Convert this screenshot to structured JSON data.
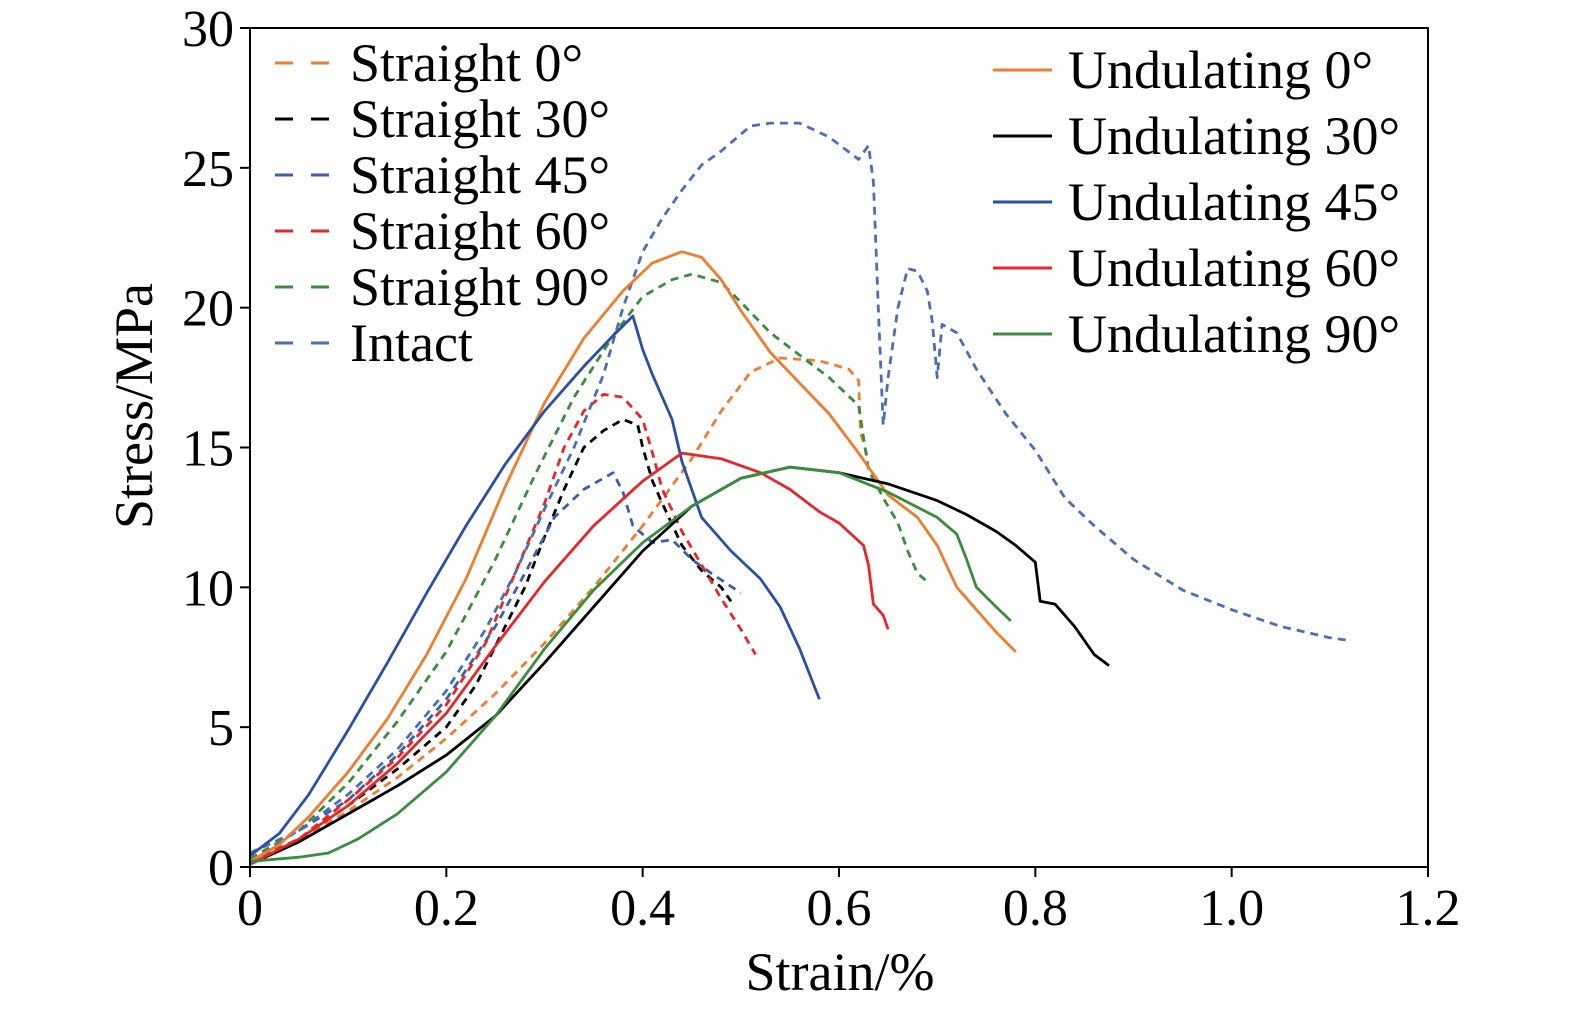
{
  "chart_data": {
    "type": "line",
    "xlabel": "Strain/%",
    "ylabel": "Stress/MPa",
    "xlim": [
      0,
      1.2
    ],
    "ylim": [
      0,
      30
    ],
    "x_ticks": [
      "0",
      "0.2",
      "0.4",
      "0.6",
      "0.8",
      "1.0",
      "1.2"
    ],
    "y_ticks": [
      "0",
      "5",
      "10",
      "15",
      "20",
      "25",
      "30"
    ],
    "grid": false,
    "series": [
      {
        "name": "Straight 0°",
        "style": "dashed",
        "color": "#ED7D31",
        "legend": "top-left",
        "points": [
          [
            0,
            0.2
          ],
          [
            0.05,
            1
          ],
          [
            0.1,
            2
          ],
          [
            0.15,
            3.2
          ],
          [
            0.2,
            4.6
          ],
          [
            0.25,
            6.2
          ],
          [
            0.3,
            8
          ],
          [
            0.35,
            10
          ],
          [
            0.4,
            12.2
          ],
          [
            0.45,
            14.6
          ],
          [
            0.48,
            16.3
          ],
          [
            0.51,
            17.7
          ],
          [
            0.54,
            18.2
          ],
          [
            0.58,
            18.1
          ],
          [
            0.61,
            17.8
          ],
          [
            0.62,
            17.4
          ],
          [
            0.622,
            15.5
          ],
          [
            0.625,
            15.2
          ],
          [
            0.63,
            14.5
          ]
        ]
      },
      {
        "name": "Straight 30°",
        "style": "dashed",
        "color": "#000000",
        "legend": "top-left",
        "points": [
          [
            0,
            0.2
          ],
          [
            0.05,
            1
          ],
          [
            0.1,
            2.2
          ],
          [
            0.15,
            3.5
          ],
          [
            0.2,
            5
          ],
          [
            0.23,
            6.5
          ],
          [
            0.26,
            8.6
          ],
          [
            0.28,
            10
          ],
          [
            0.3,
            11.8
          ],
          [
            0.32,
            13.5
          ],
          [
            0.34,
            15
          ],
          [
            0.36,
            15.6
          ],
          [
            0.38,
            16
          ],
          [
            0.395,
            15.8
          ],
          [
            0.4,
            15
          ],
          [
            0.41,
            13.8
          ],
          [
            0.42,
            13
          ],
          [
            0.44,
            11.5
          ],
          [
            0.46,
            10.6
          ],
          [
            0.48,
            10
          ],
          [
            0.49,
            9.5
          ]
        ]
      },
      {
        "name": "Straight 45°",
        "style": "dashed",
        "color": "#3D5EAD",
        "legend": "top-left",
        "points": [
          [
            0,
            0.5
          ],
          [
            0.05,
            1.3
          ],
          [
            0.1,
            2.4
          ],
          [
            0.15,
            4
          ],
          [
            0.2,
            6
          ],
          [
            0.25,
            8.6
          ],
          [
            0.28,
            10.5
          ],
          [
            0.31,
            12.5
          ],
          [
            0.34,
            13.5
          ],
          [
            0.37,
            14.1
          ],
          [
            0.38,
            13.4
          ],
          [
            0.39,
            12.2
          ],
          [
            0.41,
            11.6
          ],
          [
            0.43,
            11.7
          ],
          [
            0.45,
            11
          ],
          [
            0.47,
            10.5
          ],
          [
            0.5,
            9.8
          ]
        ]
      },
      {
        "name": "Straight 60°",
        "style": "dashed",
        "color": "#E5262B",
        "legend": "top-left",
        "points": [
          [
            0,
            0.2
          ],
          [
            0.05,
            1
          ],
          [
            0.1,
            2.4
          ],
          [
            0.15,
            3.9
          ],
          [
            0.2,
            5.8
          ],
          [
            0.24,
            8
          ],
          [
            0.27,
            10.5
          ],
          [
            0.3,
            13
          ],
          [
            0.32,
            15
          ],
          [
            0.34,
            16.3
          ],
          [
            0.36,
            16.9
          ],
          [
            0.38,
            16.8
          ],
          [
            0.4,
            16
          ],
          [
            0.41,
            14.8
          ],
          [
            0.42,
            13.5
          ],
          [
            0.44,
            12
          ],
          [
            0.46,
            10.8
          ],
          [
            0.48,
            9.6
          ],
          [
            0.5,
            8.5
          ],
          [
            0.515,
            7.6
          ]
        ]
      },
      {
        "name": "Straight 90°",
        "style": "dashed",
        "color": "#3A8C3F",
        "legend": "top-left",
        "points": [
          [
            0,
            0.3
          ],
          [
            0.05,
            1.3
          ],
          [
            0.1,
            3
          ],
          [
            0.15,
            5.2
          ],
          [
            0.2,
            7.7
          ],
          [
            0.25,
            11
          ],
          [
            0.29,
            14
          ],
          [
            0.33,
            16.8
          ],
          [
            0.37,
            19
          ],
          [
            0.4,
            20.4
          ],
          [
            0.43,
            21
          ],
          [
            0.45,
            21.2
          ],
          [
            0.48,
            20.9
          ],
          [
            0.5,
            20.2
          ],
          [
            0.53,
            19.1
          ],
          [
            0.56,
            18.3
          ],
          [
            0.59,
            17.5
          ],
          [
            0.62,
            16.5
          ],
          [
            0.63,
            14.2
          ],
          [
            0.645,
            13.2
          ],
          [
            0.66,
            12.3
          ],
          [
            0.67,
            11.3
          ],
          [
            0.68,
            10.5
          ],
          [
            0.69,
            10.2
          ]
        ]
      },
      {
        "name": "Intact",
        "style": "dashed",
        "color": "#4A6FB3",
        "legend": "top-left",
        "points": [
          [
            0,
            0.5
          ],
          [
            0.05,
            1.3
          ],
          [
            0.1,
            2.6
          ],
          [
            0.15,
            4.2
          ],
          [
            0.2,
            6.3
          ],
          [
            0.24,
            8.5
          ],
          [
            0.27,
            10.5
          ],
          [
            0.3,
            12.8
          ],
          [
            0.33,
            15
          ],
          [
            0.36,
            17.6
          ],
          [
            0.38,
            20
          ],
          [
            0.4,
            22
          ],
          [
            0.42,
            23.2
          ],
          [
            0.44,
            24.2
          ],
          [
            0.46,
            25.1
          ],
          [
            0.48,
            25.6
          ],
          [
            0.51,
            26.5
          ],
          [
            0.53,
            26.6
          ],
          [
            0.56,
            26.6
          ],
          [
            0.59,
            26.1
          ],
          [
            0.62,
            25.3
          ],
          [
            0.63,
            25.8
          ],
          [
            0.635,
            24.5
          ],
          [
            0.64,
            20
          ],
          [
            0.645,
            15.8
          ],
          [
            0.65,
            17.5
          ],
          [
            0.66,
            20
          ],
          [
            0.67,
            21.4
          ],
          [
            0.68,
            21.3
          ],
          [
            0.69,
            20.6
          ],
          [
            0.695,
            19.5
          ],
          [
            0.7,
            17.5
          ],
          [
            0.705,
            19.4
          ],
          [
            0.72,
            19.1
          ],
          [
            0.74,
            17.8
          ],
          [
            0.77,
            16.2
          ],
          [
            0.8,
            14.9
          ],
          [
            0.83,
            13.2
          ],
          [
            0.86,
            12.2
          ],
          [
            0.9,
            11
          ],
          [
            0.95,
            9.9
          ],
          [
            1,
            9.2
          ],
          [
            1.05,
            8.6
          ],
          [
            1.1,
            8.2
          ],
          [
            1.12,
            8.1
          ]
        ]
      },
      {
        "name": "Undulating 0°",
        "style": "solid",
        "color": "#ED7D31",
        "legend": "top-right",
        "points": [
          [
            0,
            0.2
          ],
          [
            0.03,
            0.8
          ],
          [
            0.06,
            1.8
          ],
          [
            0.1,
            3.4
          ],
          [
            0.14,
            5.3
          ],
          [
            0.18,
            7.6
          ],
          [
            0.22,
            10.3
          ],
          [
            0.26,
            13.6
          ],
          [
            0.3,
            16.6
          ],
          [
            0.34,
            18.9
          ],
          [
            0.38,
            20.6
          ],
          [
            0.41,
            21.6
          ],
          [
            0.44,
            22
          ],
          [
            0.46,
            21.8
          ],
          [
            0.48,
            21
          ],
          [
            0.5,
            19.9
          ],
          [
            0.53,
            18.4
          ],
          [
            0.56,
            17.3
          ],
          [
            0.59,
            16.2
          ],
          [
            0.62,
            14.8
          ],
          [
            0.65,
            13.3
          ],
          [
            0.68,
            12.5
          ],
          [
            0.7,
            11.5
          ],
          [
            0.72,
            10
          ],
          [
            0.74,
            9.2
          ],
          [
            0.76,
            8.4
          ],
          [
            0.78,
            7.7
          ]
        ]
      },
      {
        "name": "Undulating 30°",
        "style": "solid",
        "color": "#000000",
        "legend": "top-right",
        "points": [
          [
            0,
            0.1
          ],
          [
            0.05,
            0.9
          ],
          [
            0.1,
            1.9
          ],
          [
            0.15,
            2.9
          ],
          [
            0.2,
            4
          ],
          [
            0.25,
            5.4
          ],
          [
            0.3,
            7.3
          ],
          [
            0.35,
            9.3
          ],
          [
            0.4,
            11.3
          ],
          [
            0.45,
            12.9
          ],
          [
            0.5,
            13.9
          ],
          [
            0.55,
            14.3
          ],
          [
            0.6,
            14.1
          ],
          [
            0.65,
            13.7
          ],
          [
            0.7,
            13.1
          ],
          [
            0.73,
            12.6
          ],
          [
            0.76,
            12
          ],
          [
            0.78,
            11.5
          ],
          [
            0.8,
            10.9
          ],
          [
            0.805,
            9.5
          ],
          [
            0.82,
            9.4
          ],
          [
            0.84,
            8.6
          ],
          [
            0.86,
            7.6
          ],
          [
            0.875,
            7.2
          ]
        ]
      },
      {
        "name": "Undulating 45°",
        "style": "solid",
        "color": "#2B4FA3",
        "legend": "top-right",
        "points": [
          [
            0,
            0.4
          ],
          [
            0.03,
            1.2
          ],
          [
            0.06,
            2.6
          ],
          [
            0.1,
            4.9
          ],
          [
            0.14,
            7.3
          ],
          [
            0.18,
            9.8
          ],
          [
            0.22,
            12.2
          ],
          [
            0.26,
            14.4
          ],
          [
            0.3,
            16.3
          ],
          [
            0.34,
            17.9
          ],
          [
            0.37,
            19
          ],
          [
            0.39,
            19.7
          ],
          [
            0.4,
            18.5
          ],
          [
            0.41,
            17.6
          ],
          [
            0.43,
            16
          ],
          [
            0.44,
            14.5
          ],
          [
            0.46,
            12.5
          ],
          [
            0.49,
            11.3
          ],
          [
            0.52,
            10.3
          ],
          [
            0.54,
            9.3
          ],
          [
            0.56,
            7.8
          ],
          [
            0.58,
            6
          ]
        ]
      },
      {
        "name": "Undulating 60°",
        "style": "solid",
        "color": "#E5262B",
        "legend": "top-right",
        "points": [
          [
            0,
            0.1
          ],
          [
            0.05,
            1
          ],
          [
            0.1,
            2.2
          ],
          [
            0.15,
            3.7
          ],
          [
            0.2,
            5.5
          ],
          [
            0.25,
            7.9
          ],
          [
            0.3,
            10.2
          ],
          [
            0.35,
            12.2
          ],
          [
            0.4,
            13.8
          ],
          [
            0.44,
            14.8
          ],
          [
            0.48,
            14.6
          ],
          [
            0.52,
            14.1
          ],
          [
            0.55,
            13.5
          ],
          [
            0.58,
            12.7
          ],
          [
            0.6,
            12.3
          ],
          [
            0.625,
            11.5
          ],
          [
            0.63,
            10.8
          ],
          [
            0.635,
            9.4
          ],
          [
            0.645,
            9
          ],
          [
            0.65,
            8.5
          ]
        ]
      },
      {
        "name": "Undulating 90°",
        "style": "solid",
        "color": "#3A8C3F",
        "legend": "top-right",
        "points": [
          [
            0,
            0.2
          ],
          [
            0.05,
            0.35
          ],
          [
            0.08,
            0.5
          ],
          [
            0.11,
            1
          ],
          [
            0.15,
            1.9
          ],
          [
            0.2,
            3.4
          ],
          [
            0.25,
            5.4
          ],
          [
            0.3,
            7.8
          ],
          [
            0.35,
            9.9
          ],
          [
            0.4,
            11.6
          ],
          [
            0.45,
            12.9
          ],
          [
            0.5,
            13.9
          ],
          [
            0.55,
            14.3
          ],
          [
            0.6,
            14.1
          ],
          [
            0.65,
            13.4
          ],
          [
            0.7,
            12.5
          ],
          [
            0.72,
            11.9
          ],
          [
            0.73,
            11
          ],
          [
            0.74,
            10
          ],
          [
            0.76,
            9.3
          ],
          [
            0.775,
            8.8
          ]
        ]
      }
    ]
  }
}
